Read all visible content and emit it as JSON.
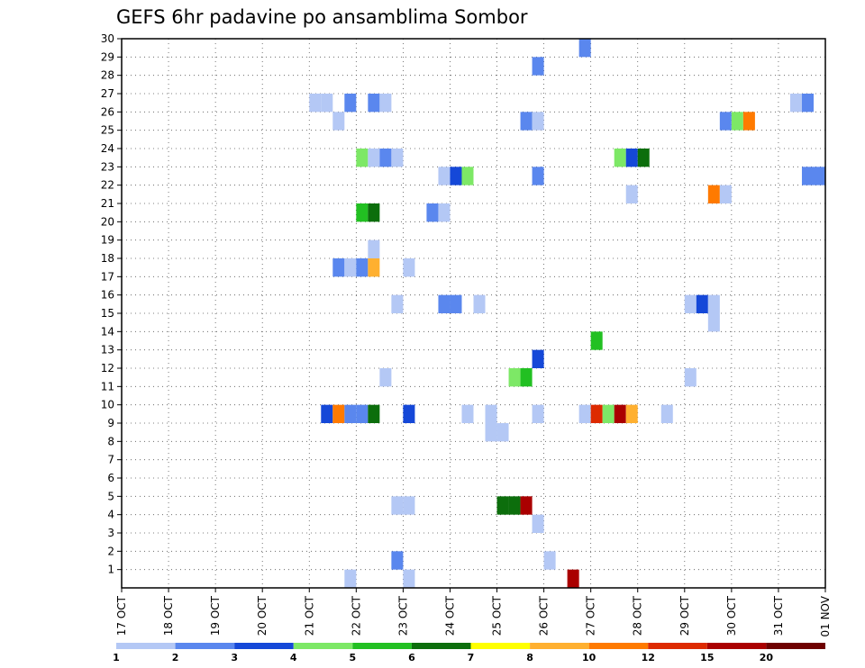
{
  "chart_data": {
    "type": "heatmap",
    "title": "GEFS 6hr padavine po ansamblima Sombor",
    "xlabel": "",
    "ylabel": "",
    "x_ticks": [
      "17 OCT",
      "18 OCT",
      "19 OCT",
      "20 OCT",
      "21 OCT",
      "22 OCT",
      "23 OCT",
      "24 OCT",
      "25 OCT",
      "26 OCT",
      "27 OCT",
      "28 OCT",
      "29 OCT",
      "30 OCT",
      "31 OCT",
      "01 NOV"
    ],
    "y_ticks": [
      "1",
      "2",
      "3",
      "4",
      "5",
      "6",
      "7",
      "8",
      "9",
      "10",
      "11",
      "12",
      "13",
      "14",
      "15",
      "16",
      "17",
      "18",
      "19",
      "20",
      "21",
      "22",
      "23",
      "24",
      "25",
      "26",
      "27",
      "28",
      "29",
      "30"
    ],
    "xlim": [
      0,
      60
    ],
    "ylim": [
      0,
      30
    ],
    "grid": true,
    "step_hours": 6,
    "colorbar": {
      "labels": [
        "1",
        "2",
        "3",
        "4",
        "5",
        "6",
        "7",
        "8",
        "10",
        "12",
        "15",
        "20"
      ],
      "colors": [
        "#b4c8f5",
        "#5a87ee",
        "#1548d8",
        "#7de866",
        "#22c022",
        "#0c6e0c",
        "#ffff00",
        "#ffb030",
        "#ff7a00",
        "#dd2a00",
        "#aa0000",
        "#6e0000"
      ]
    },
    "cells": [
      {
        "member": 26,
        "step": 16,
        "level": 1
      },
      {
        "member": 26,
        "step": 17,
        "level": 1
      },
      {
        "member": 26,
        "step": 19,
        "level": 2
      },
      {
        "member": 26,
        "step": 21,
        "level": 2
      },
      {
        "member": 26,
        "step": 22,
        "level": 1
      },
      {
        "member": 26,
        "step": 57,
        "level": 1
      },
      {
        "member": 26,
        "step": 58,
        "level": 2
      },
      {
        "member": 25,
        "step": 18,
        "level": 1
      },
      {
        "member": 25,
        "step": 34,
        "level": 2
      },
      {
        "member": 25,
        "step": 35,
        "level": 1
      },
      {
        "member": 25,
        "step": 51,
        "level": 2
      },
      {
        "member": 25,
        "step": 52,
        "level": 4
      },
      {
        "member": 25,
        "step": 53,
        "level": 9
      },
      {
        "member": 29,
        "step": 39,
        "level": 2
      },
      {
        "member": 28,
        "step": 35,
        "level": 2
      },
      {
        "member": 23,
        "step": 20,
        "level": 4
      },
      {
        "member": 23,
        "step": 21,
        "level": 1
      },
      {
        "member": 23,
        "step": 22,
        "level": 2
      },
      {
        "member": 23,
        "step": 23,
        "level": 1
      },
      {
        "member": 23,
        "step": 42,
        "level": 4
      },
      {
        "member": 23,
        "step": 43,
        "level": 3
      },
      {
        "member": 23,
        "step": 44,
        "level": 6
      },
      {
        "member": 22,
        "step": 27,
        "level": 1
      },
      {
        "member": 22,
        "step": 28,
        "level": 3
      },
      {
        "member": 22,
        "step": 29,
        "level": 4
      },
      {
        "member": 22,
        "step": 35,
        "level": 2
      },
      {
        "member": 22,
        "step": 58,
        "level": 2
      },
      {
        "member": 22,
        "step": 59,
        "level": 2
      },
      {
        "member": 21,
        "step": 43,
        "level": 1
      },
      {
        "member": 21,
        "step": 50,
        "level": 9
      },
      {
        "member": 21,
        "step": 51,
        "level": 1
      },
      {
        "member": 20,
        "step": 20,
        "level": 5
      },
      {
        "member": 20,
        "step": 21,
        "level": 6
      },
      {
        "member": 20,
        "step": 26,
        "level": 2
      },
      {
        "member": 20,
        "step": 27,
        "level": 1
      },
      {
        "member": 18,
        "step": 21,
        "level": 1
      },
      {
        "member": 17,
        "step": 18,
        "level": 2
      },
      {
        "member": 17,
        "step": 19,
        "level": 1
      },
      {
        "member": 17,
        "step": 20,
        "level": 2
      },
      {
        "member": 17,
        "step": 21,
        "level": 8
      },
      {
        "member": 17,
        "step": 24,
        "level": 1
      },
      {
        "member": 15,
        "step": 23,
        "level": 1
      },
      {
        "member": 15,
        "step": 27,
        "level": 2
      },
      {
        "member": 15,
        "step": 28,
        "level": 2
      },
      {
        "member": 15,
        "step": 30,
        "level": 1
      },
      {
        "member": 15,
        "step": 48,
        "level": 1
      },
      {
        "member": 15,
        "step": 49,
        "level": 3
      },
      {
        "member": 15,
        "step": 50,
        "level": 1
      },
      {
        "member": 14,
        "step": 50,
        "level": 1
      },
      {
        "member": 13,
        "step": 40,
        "level": 5
      },
      {
        "member": 12,
        "step": 35,
        "level": 3
      },
      {
        "member": 11,
        "step": 22,
        "level": 1
      },
      {
        "member": 11,
        "step": 33,
        "level": 4
      },
      {
        "member": 11,
        "step": 34,
        "level": 5
      },
      {
        "member": 11,
        "step": 48,
        "level": 1
      },
      {
        "member": 9,
        "step": 17,
        "level": 3
      },
      {
        "member": 9,
        "step": 18,
        "level": 9
      },
      {
        "member": 9,
        "step": 19,
        "level": 2
      },
      {
        "member": 9,
        "step": 20,
        "level": 2
      },
      {
        "member": 9,
        "step": 21,
        "level": 6
      },
      {
        "member": 9,
        "step": 24,
        "level": 3
      },
      {
        "member": 9,
        "step": 29,
        "level": 1
      },
      {
        "member": 9,
        "step": 31,
        "level": 1
      },
      {
        "member": 9,
        "step": 35,
        "level": 1
      },
      {
        "member": 9,
        "step": 39,
        "level": 1
      },
      {
        "member": 9,
        "step": 40,
        "level": 10
      },
      {
        "member": 9,
        "step": 41,
        "level": 4
      },
      {
        "member": 9,
        "step": 42,
        "level": 11
      },
      {
        "member": 9,
        "step": 43,
        "level": 8
      },
      {
        "member": 9,
        "step": 46,
        "level": 1
      },
      {
        "member": 8,
        "step": 31,
        "level": 1
      },
      {
        "member": 8,
        "step": 32,
        "level": 1
      },
      {
        "member": 4,
        "step": 23,
        "level": 1
      },
      {
        "member": 4,
        "step": 24,
        "level": 1
      },
      {
        "member": 4,
        "step": 32,
        "level": 6
      },
      {
        "member": 4,
        "step": 33,
        "level": 6
      },
      {
        "member": 4,
        "step": 34,
        "level": 11
      },
      {
        "member": 3,
        "step": 35,
        "level": 1
      },
      {
        "member": 1,
        "step": 23,
        "level": 2
      },
      {
        "member": 1,
        "step": 36,
        "level": 1
      },
      {
        "member": 0,
        "step": 19,
        "level": 1
      },
      {
        "member": 0,
        "step": 24,
        "level": 1
      },
      {
        "member": 0,
        "step": 38,
        "level": 11
      }
    ]
  }
}
